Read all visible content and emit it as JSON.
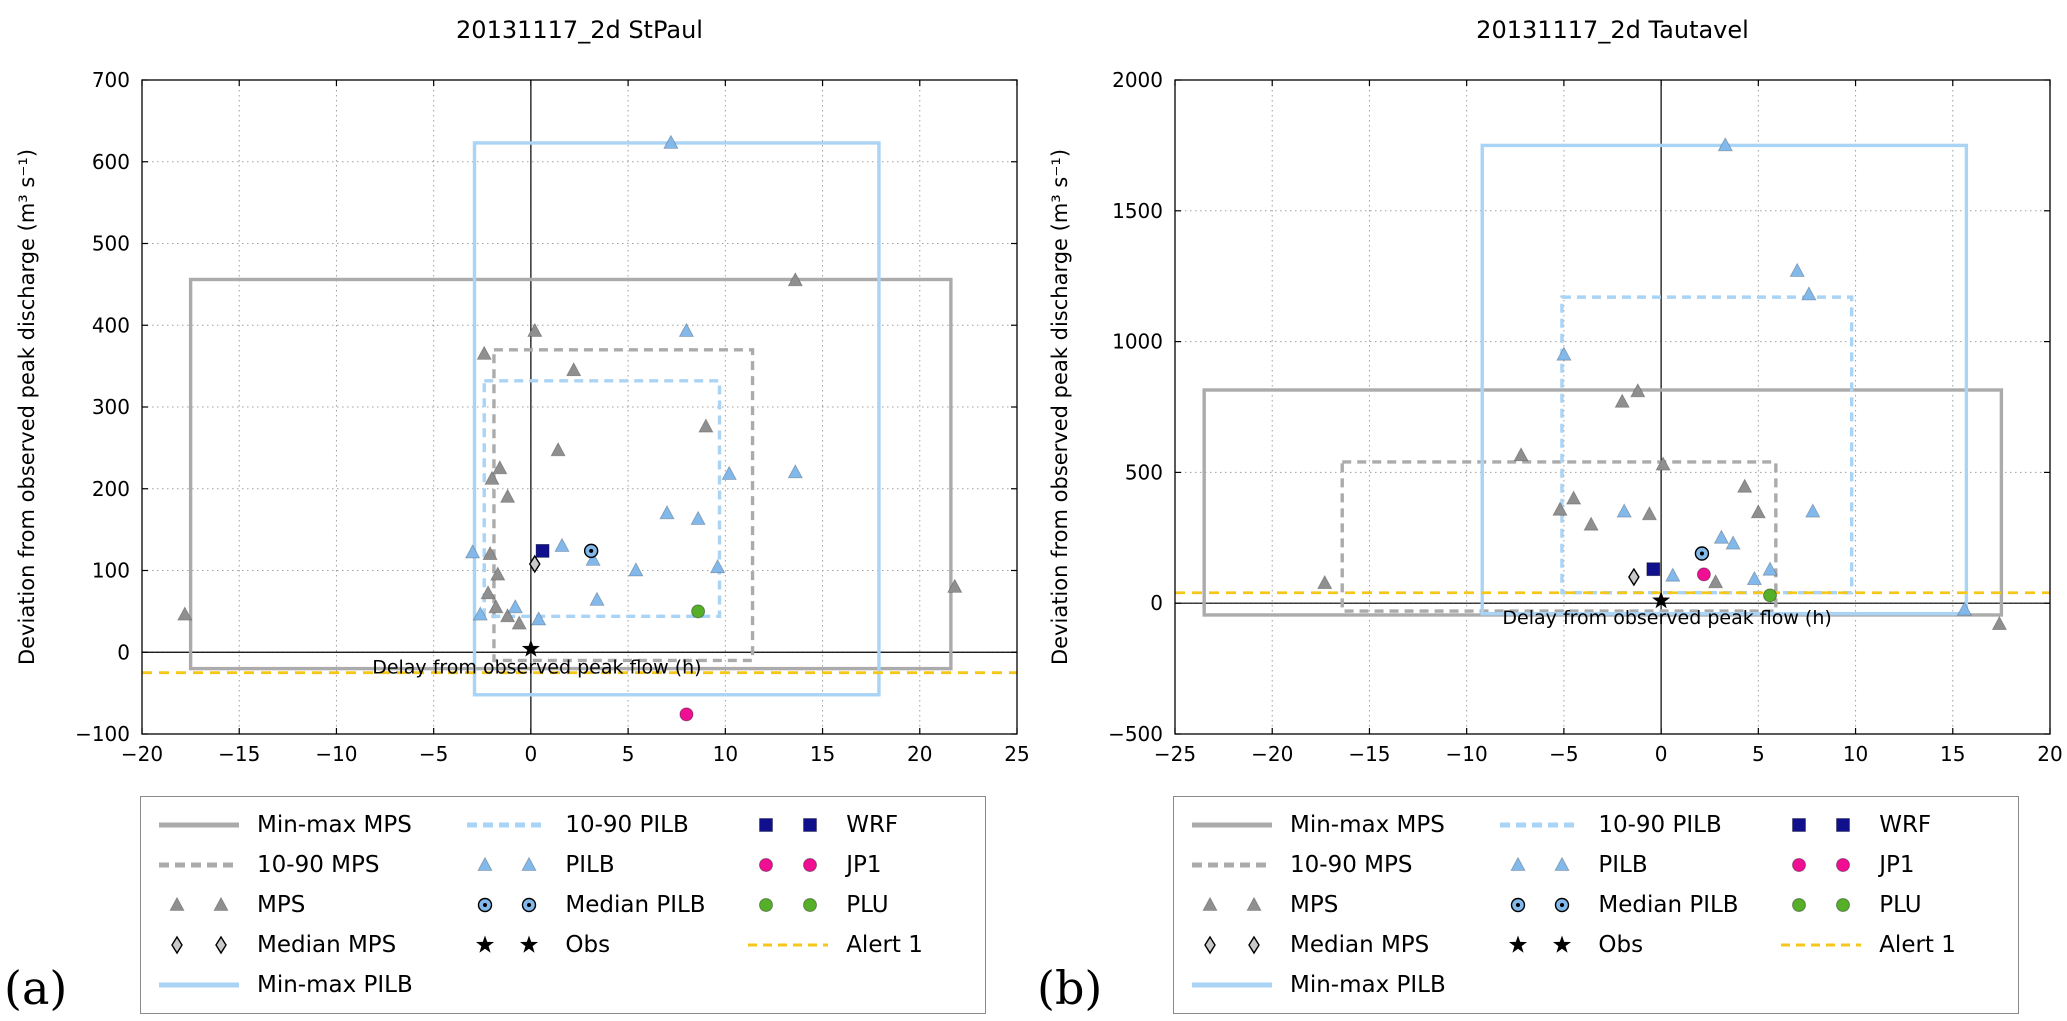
{
  "panel_labels": {
    "a": "(a)",
    "b": "(b)"
  },
  "colors": {
    "gray_line": "#ababab",
    "gray_marker": "#8f8f8f",
    "blue_line": "#aad4f6",
    "blue_marker": "#82b8ea",
    "navy": "#10108c",
    "pink": "#f00f93",
    "green": "#55af29",
    "gold": "#f5c71a",
    "black": "#000000"
  },
  "legend": {
    "columns": [
      [
        {
          "label": "Min-max MPS",
          "marker": "line-solid",
          "color": "gray_line"
        },
        {
          "label": "10-90 MPS",
          "marker": "line-dashed",
          "color": "gray_line"
        },
        {
          "label": "MPS",
          "marker": "triangle-pair",
          "color": "gray_marker"
        },
        {
          "label": "Median MPS",
          "marker": "diamond-pair",
          "color": "black"
        },
        {
          "label": "Min-max PILB",
          "marker": "line-solid",
          "color": "blue_line"
        }
      ],
      [
        {
          "label": "10-90 PILB",
          "marker": "line-dashed",
          "color": "blue_line"
        },
        {
          "label": "PILB",
          "marker": "triangle-pair",
          "color": "blue_marker"
        },
        {
          "label": "Median PILB",
          "marker": "circledot-pair",
          "color": "blue_marker"
        },
        {
          "label": "Obs",
          "marker": "star-pair",
          "color": "black"
        }
      ],
      [
        {
          "label": "WRF",
          "marker": "square-pair",
          "color": "navy"
        },
        {
          "label": "JP1",
          "marker": "circle-pair",
          "color": "pink"
        },
        {
          "label": "PLU",
          "marker": "circle-pair",
          "color": "green"
        },
        {
          "label": "Alert 1",
          "marker": "line-dashed-thin",
          "color": "gold"
        }
      ]
    ]
  },
  "chart_data": [
    {
      "type": "scatter",
      "panel": "a",
      "title": "20131117_2d  StPaul",
      "ylabel": "Deviation from observed peak discharge (m³ s⁻¹)",
      "inner_xlabel": "Delay from observed peak flow (h)",
      "xlim": [
        -20,
        25
      ],
      "ylim": [
        -100,
        700
      ],
      "xticks": [
        -20,
        -15,
        -10,
        -5,
        0,
        5,
        10,
        15,
        20,
        25
      ],
      "yticks": [
        -100,
        0,
        100,
        200,
        300,
        400,
        500,
        600,
        700
      ],
      "grid": "dotted",
      "boxes": [
        {
          "name": "Min-max MPS",
          "style": "solid",
          "color": "gray_line",
          "x": [
            -17.5,
            21.6
          ],
          "y": [
            -20,
            456
          ]
        },
        {
          "name": "10-90 MPS",
          "style": "dashed",
          "color": "gray_line",
          "x": [
            -1.9,
            11.4
          ],
          "y": [
            -10,
            370
          ]
        },
        {
          "name": "Min-max PILB",
          "style": "solid",
          "color": "blue_line",
          "x": [
            -2.9,
            17.9
          ],
          "y": [
            -52,
            623
          ]
        },
        {
          "name": "10-90 PILB",
          "style": "dashed",
          "color": "blue_line",
          "x": [
            -2.4,
            9.7
          ],
          "y": [
            44,
            332
          ]
        }
      ],
      "alert_line": {
        "name": "Alert 1",
        "y": -25,
        "color": "gold"
      },
      "series": [
        {
          "name": "MPS",
          "marker": "triangle",
          "color": "gray_marker",
          "points": [
            [
              -17.8,
              46
            ],
            [
              -2.4,
              365
            ],
            [
              0.2,
              393
            ],
            [
              2.2,
              345
            ],
            [
              1.4,
              247
            ],
            [
              -1.6,
              225
            ],
            [
              -2.0,
              212
            ],
            [
              -1.2,
              190
            ],
            [
              9.0,
              276
            ],
            [
              13.6,
              455
            ],
            [
              21.8,
              80
            ],
            [
              -2.1,
              120
            ],
            [
              -1.7,
              95
            ],
            [
              -2.2,
              72
            ],
            [
              -1.8,
              55
            ],
            [
              -1.2,
              44
            ],
            [
              -0.6,
              35
            ]
          ]
        },
        {
          "name": "PILB",
          "marker": "triangle",
          "color": "blue_marker",
          "points": [
            [
              -3.0,
              122
            ],
            [
              7.2,
              623
            ],
            [
              8.0,
              393
            ],
            [
              1.6,
              130
            ],
            [
              3.2,
              113
            ],
            [
              7.0,
              170
            ],
            [
              8.6,
              163
            ],
            [
              10.2,
              218
            ],
            [
              13.6,
              220
            ],
            [
              5.4,
              100
            ],
            [
              3.4,
              64
            ],
            [
              -0.8,
              55
            ],
            [
              0.4,
              40
            ],
            [
              9.6,
              104
            ],
            [
              -2.6,
              46
            ]
          ]
        },
        {
          "name": "Median MPS",
          "marker": "diamond",
          "color": "black",
          "points": [
            [
              0.2,
              108
            ]
          ]
        },
        {
          "name": "WRF",
          "marker": "square",
          "color": "navy",
          "points": [
            [
              0.6,
              124
            ]
          ]
        },
        {
          "name": "Median PILB",
          "marker": "circle-dot",
          "color": "blue_marker",
          "points": [
            [
              3.1,
              124
            ]
          ]
        },
        {
          "name": "Obs",
          "marker": "star",
          "color": "black",
          "points": [
            [
              0,
              4
            ]
          ]
        },
        {
          "name": "JP1",
          "marker": "circle",
          "color": "pink",
          "points": [
            [
              8.0,
              -76
            ]
          ]
        },
        {
          "name": "PLU",
          "marker": "circle",
          "color": "green",
          "points": [
            [
              8.6,
              50
            ]
          ]
        }
      ]
    },
    {
      "type": "scatter",
      "panel": "b",
      "title": "20131117_2d  Tautavel",
      "ylabel": "Deviation from observed peak discharge (m³ s⁻¹)",
      "inner_xlabel": "Delay from observed peak flow (h)",
      "xlim": [
        -25,
        20
      ],
      "ylim": [
        -500,
        2000
      ],
      "xticks": [
        -25,
        -20,
        -15,
        -10,
        -5,
        0,
        5,
        10,
        15,
        20
      ],
      "yticks": [
        -500,
        0,
        500,
        1000,
        1500,
        2000
      ],
      "grid": "dotted",
      "boxes": [
        {
          "name": "Min-max MPS",
          "style": "solid",
          "color": "gray_line",
          "x": [
            -23.5,
            17.5
          ],
          "y": [
            -45,
            815
          ]
        },
        {
          "name": "10-90 MPS",
          "style": "dashed",
          "color": "gray_line",
          "x": [
            -16.4,
            5.9
          ],
          "y": [
            -30,
            540
          ]
        },
        {
          "name": "Min-max PILB",
          "style": "solid",
          "color": "blue_line",
          "x": [
            -9.2,
            15.7
          ],
          "y": [
            -40,
            1750
          ]
        },
        {
          "name": "10-90 PILB",
          "style": "dashed",
          "color": "blue_line",
          "x": [
            -5.1,
            9.8
          ],
          "y": [
            40,
            1170
          ]
        }
      ],
      "alert_line": {
        "name": "Alert 1",
        "y": 40,
        "color": "gold"
      },
      "series": [
        {
          "name": "MPS",
          "marker": "triangle",
          "color": "gray_marker",
          "points": [
            [
              -17.3,
              77
            ],
            [
              -7.2,
              565
            ],
            [
              -5.2,
              357
            ],
            [
              -4.5,
              400
            ],
            [
              -3.6,
              300
            ],
            [
              -2.0,
              770
            ],
            [
              -1.2,
              810
            ],
            [
              -0.6,
              340
            ],
            [
              0.1,
              530
            ],
            [
              4.3,
              445
            ],
            [
              5.0,
              347
            ],
            [
              2.8,
              80
            ],
            [
              17.4,
              -80
            ]
          ]
        },
        {
          "name": "PILB",
          "marker": "triangle",
          "color": "blue_marker",
          "points": [
            [
              3.3,
              1750
            ],
            [
              7.0,
              1270
            ],
            [
              7.6,
              1180
            ],
            [
              -5.0,
              950
            ],
            [
              -1.9,
              350
            ],
            [
              3.1,
              250
            ],
            [
              3.7,
              228
            ],
            [
              7.8,
              350
            ],
            [
              5.6,
              128
            ],
            [
              4.8,
              92
            ],
            [
              15.6,
              -25
            ],
            [
              0.6,
              105
            ]
          ]
        },
        {
          "name": "Median MPS",
          "marker": "diamond",
          "color": "black",
          "points": [
            [
              -1.4,
              100
            ]
          ]
        },
        {
          "name": "WRF",
          "marker": "square",
          "color": "navy",
          "points": [
            [
              -0.4,
              130
            ]
          ]
        },
        {
          "name": "Median PILB",
          "marker": "circle-dot",
          "color": "blue_marker",
          "points": [
            [
              2.1,
              190
            ]
          ]
        },
        {
          "name": "Obs",
          "marker": "star",
          "color": "black",
          "points": [
            [
              0,
              10
            ]
          ]
        },
        {
          "name": "JP1",
          "marker": "circle",
          "color": "pink",
          "points": [
            [
              2.2,
              110
            ]
          ]
        },
        {
          "name": "PLU",
          "marker": "circle",
          "color": "green",
          "points": [
            [
              5.6,
              30
            ]
          ]
        }
      ]
    }
  ]
}
